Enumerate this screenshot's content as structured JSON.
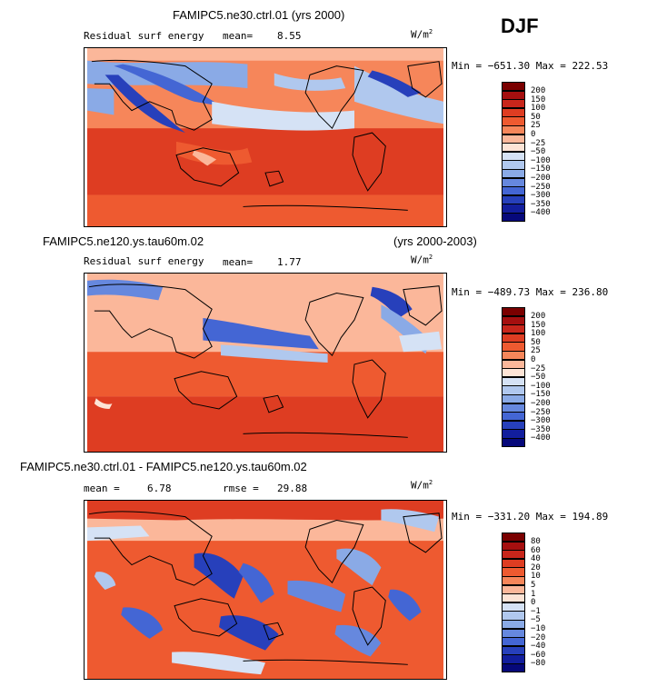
{
  "header": {
    "season": "DJF"
  },
  "panels": [
    {
      "id": "top",
      "title_left": "FAMIPC5.ne30.ctrl.01 (yrs 2000)",
      "title_right": "",
      "subtitle": "Residual surf energy",
      "stat1_label": "mean=",
      "stat1_value": "8.55",
      "stat2_label": "",
      "stat2_value": "",
      "units": "W/m",
      "units_exp": "2",
      "minmax": "Min = −651.30  Max = 222.53",
      "colorbar_labels": [
        "200",
        "150",
        "100",
        "50",
        "25",
        "0",
        "−25",
        "−50",
        "−100",
        "−150",
        "−200",
        "−250",
        "−300",
        "−350",
        "−400"
      ]
    },
    {
      "id": "middle",
      "title_left": "FAMIPC5.ne120.ys.tau60m.02",
      "title_right": "(yrs 2000-2003)",
      "subtitle": "Residual surf energy",
      "stat1_label": "mean=",
      "stat1_value": "1.77",
      "stat2_label": "",
      "stat2_value": "",
      "units": "W/m",
      "units_exp": "2",
      "minmax": "Min = −489.73  Max = 236.80",
      "colorbar_labels": [
        "200",
        "150",
        "100",
        "50",
        "25",
        "0",
        "−25",
        "−50",
        "−100",
        "−150",
        "−200",
        "−250",
        "−300",
        "−350",
        "−400"
      ]
    },
    {
      "id": "bottom",
      "title_left": "FAMIPC5.ne30.ctrl.01 - FAMIPC5.ne120.ys.tau60m.02",
      "title_right": "",
      "subtitle": "",
      "stat1_label": "mean =",
      "stat1_value": "6.78",
      "stat2_label": "rmse =",
      "stat2_value": "29.88",
      "units": "W/m",
      "units_exp": "2",
      "minmax": "Min = −331.20  Max = 194.89",
      "colorbar_labels": [
        "80",
        "60",
        "40",
        "20",
        "10",
        "5",
        "1",
        "0",
        "−1",
        "−5",
        "−10",
        "−20",
        "−40",
        "−60",
        "−80"
      ]
    }
  ],
  "colors": {
    "colorbar": [
      "#7a0000",
      "#a50f0f",
      "#c8261b",
      "#de3d22",
      "#ee5a30",
      "#f6865a",
      "#fbb79a",
      "#fde4d6",
      "#d5e2f5",
      "#b0c8ee",
      "#8aaae6",
      "#6688de",
      "#4466d4",
      "#2740bb",
      "#121e9d",
      "#06087a"
    ]
  }
}
